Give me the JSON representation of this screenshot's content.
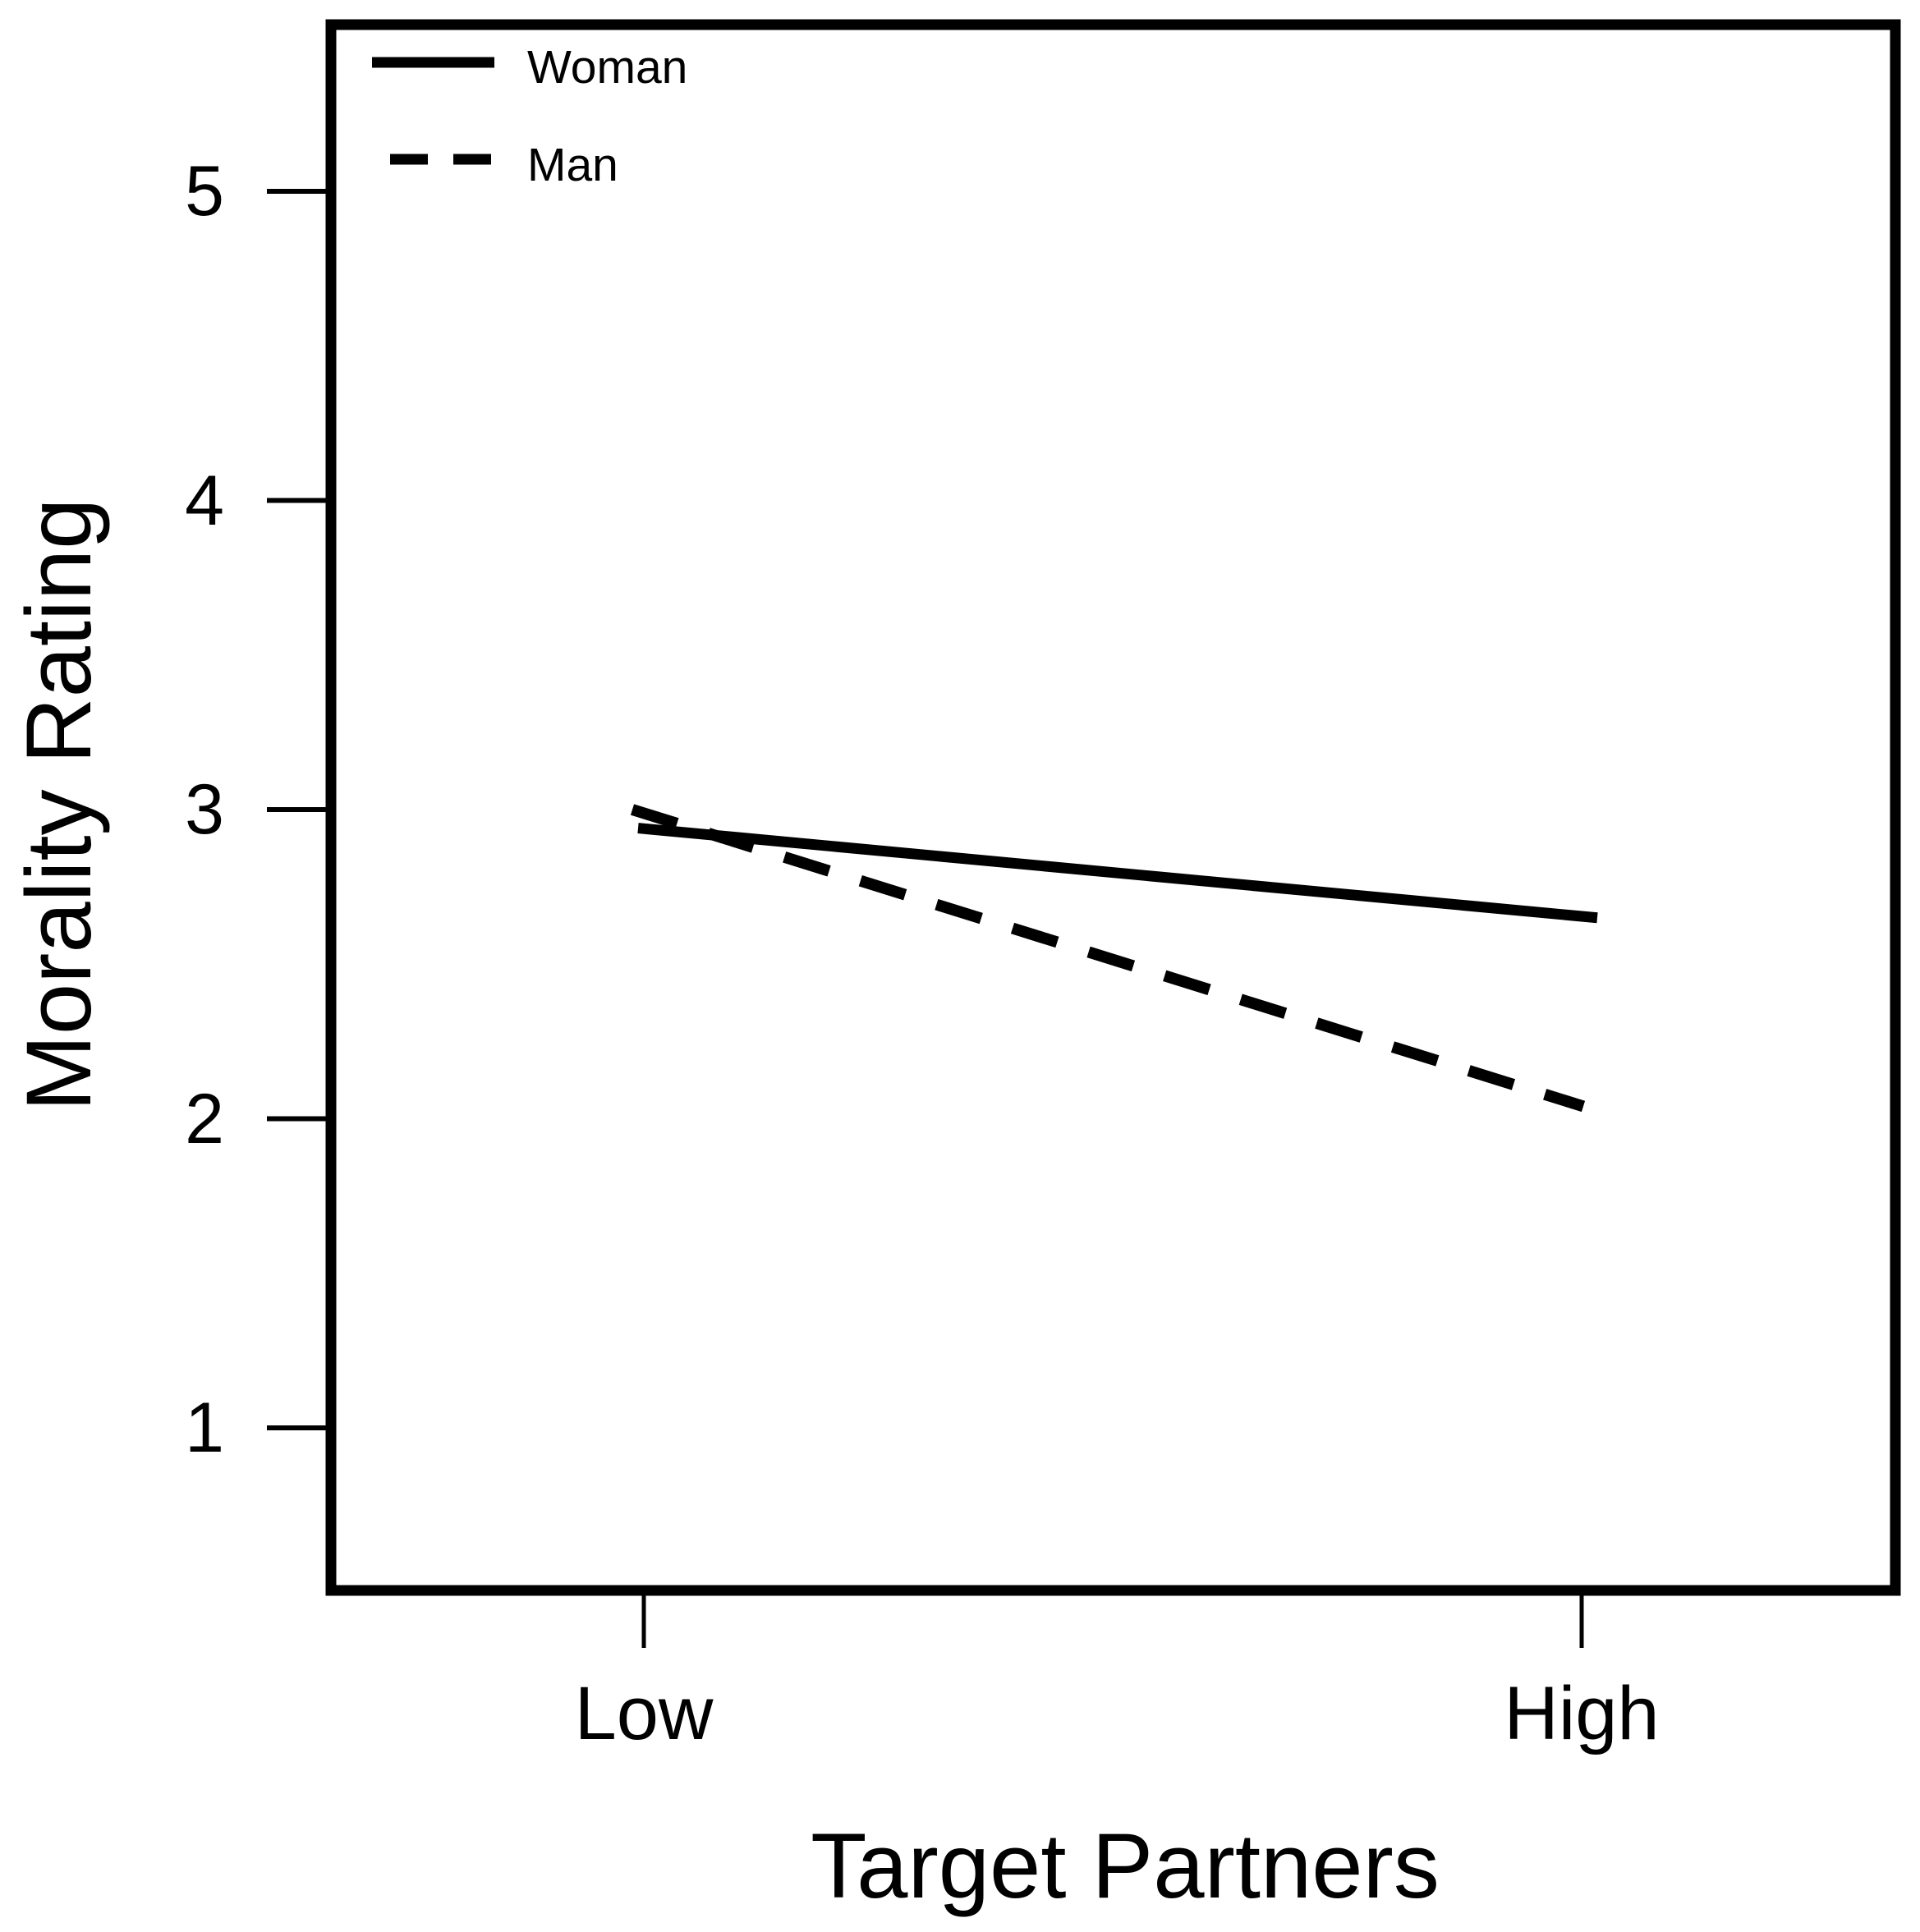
{
  "figure": {
    "background_color": "#ffffff",
    "ink_color": "#000000"
  },
  "legend": {
    "items": [
      {
        "label": "Woman",
        "line_style": "solid"
      },
      {
        "label": "Man",
        "line_style": "dashed"
      }
    ]
  },
  "chart_data": {
    "type": "line",
    "title": "",
    "xlabel": "Target Partners",
    "ylabel": "Morality Rating",
    "categories": [
      "Low",
      "High"
    ],
    "series": [
      {
        "name": "Woman",
        "style": "solid",
        "values": [
          2.94,
          2.65
        ]
      },
      {
        "name": "Man",
        "style": "dashed",
        "values": [
          3.0,
          2.04
        ]
      }
    ],
    "yticks": [
      5,
      4,
      3,
      2,
      1
    ],
    "ylim": [
      0.5,
      5.5
    ],
    "grid": false,
    "legend_position": "top-left-inside"
  }
}
